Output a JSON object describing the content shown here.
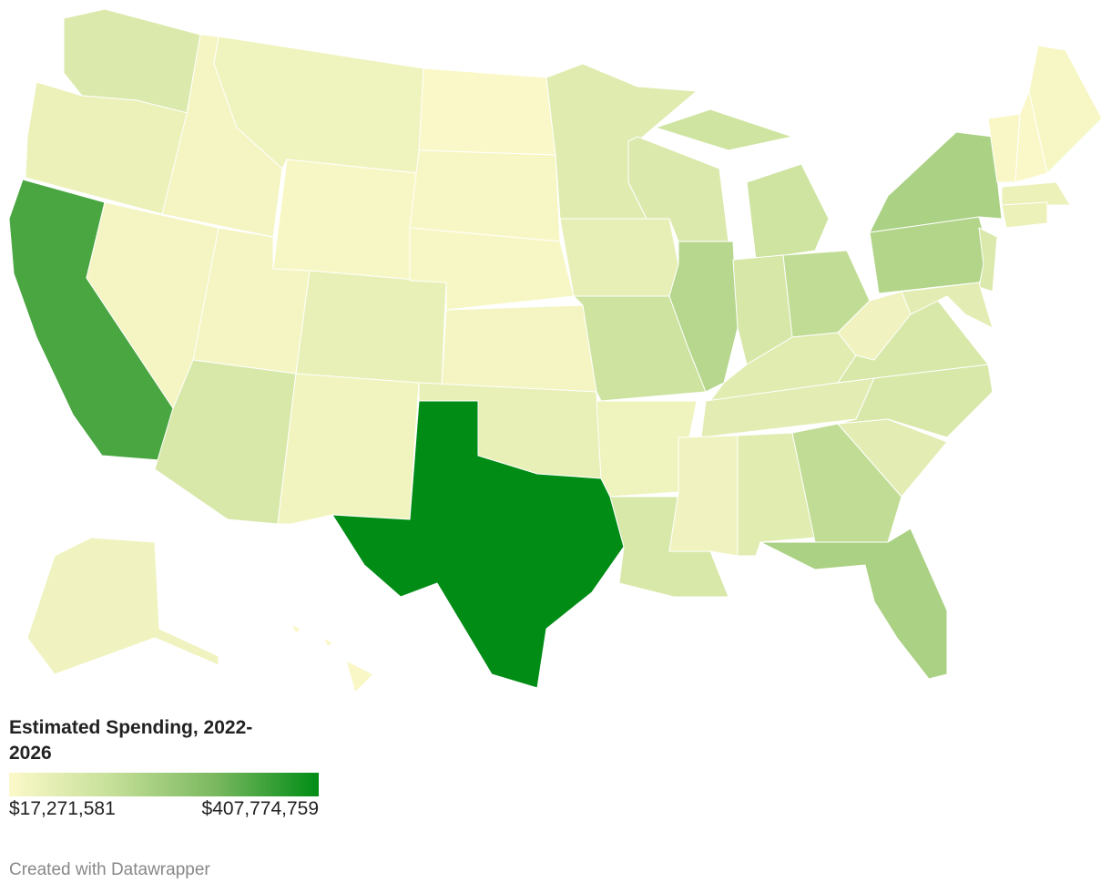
{
  "map": {
    "legend": {
      "title": "Estimated Spending, 2022-2026",
      "min": {
        "value": 17271581,
        "label": "$17,271,581"
      },
      "max": {
        "value": 407774759,
        "label": "$407,774,759"
      },
      "colors": [
        "#fcf9c9",
        "#c5df98",
        "#7ab85f",
        "#008c15"
      ]
    },
    "regions": {
      "values": [
        95000000,
        56000000,
        330000000,
        37000000,
        37000000,
        48000000,
        29000000,
        37000000,
        103000000,
        64000000,
        41000000,
        21000000,
        29000000,
        29000000,
        37000000,
        64000000,
        407774759,
        87000000,
        68000000,
        127000000,
        48000000,
        103000000,
        95000000,
        173000000,
        123000000,
        107000000,
        154000000,
        84000000,
        76000000,
        45000000,
        84000000,
        154000000,
        193000000,
        76000000,
        103000000,
        103000000,
        45000000,
        181000000,
        193000000,
        95000000,
        76000000,
        25000000,
        21000000,
        29000000,
        56000000,
        56000000,
        45000000,
        25000000
      ]
    }
  },
  "footer": "Created with Datawrapper"
}
